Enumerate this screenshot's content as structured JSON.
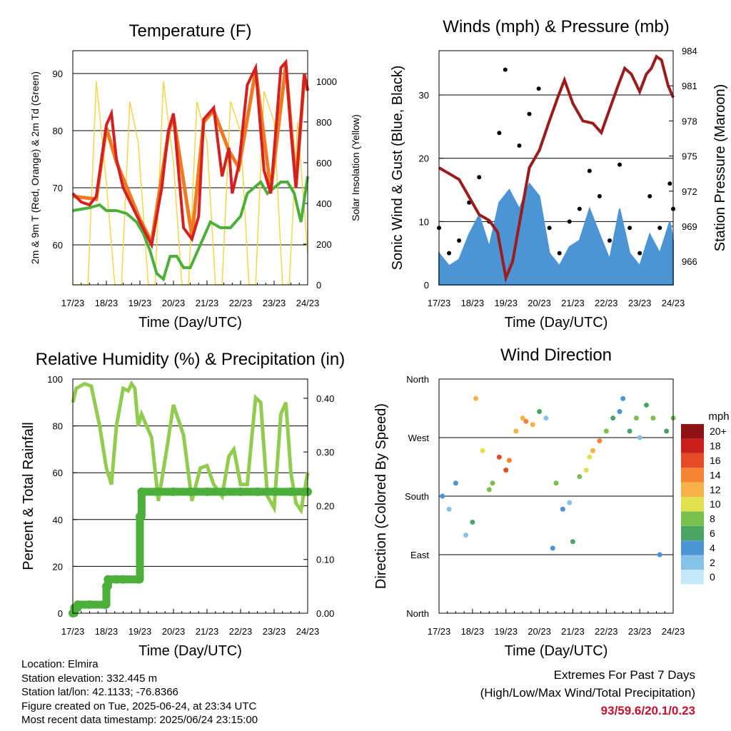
{
  "colors": {
    "temp_2m": "#d42020",
    "temp_9m": "#f07a20",
    "dewpoint": "#4caf3a",
    "solar": "#f5d64a",
    "wind": "#4d94d4",
    "gust": "#000000",
    "pressure": "#9b1c1c",
    "rh": "#92cc4f",
    "precip": "#4caf3a",
    "extremes": "#c8102e"
  },
  "time_ticks": [
    "17/23",
    "18/23",
    "19/23",
    "20/23",
    "21/23",
    "22/23",
    "23/23",
    "24/23"
  ],
  "panels": {
    "temperature": {
      "title": "Temperature (F)",
      "xlabel": "Time (Day/UTC)",
      "ylabel_left": "2m & 9m T (Red, Orange) & 2m Td (Green)",
      "ylabel_right": "Solar Insolation (Yellow)",
      "yticks_left": [
        "60",
        "70",
        "80",
        "90"
      ],
      "yticks_right": [
        "0",
        "200",
        "400",
        "600",
        "800",
        "1000"
      ]
    },
    "winds": {
      "title": "Winds (mph) & Pressure (mb)",
      "xlabel": "Time (Day/UTC)",
      "ylabel_left": "Sonic Wind & Gust (Blue, Black)",
      "ylabel_right": "Station Pressure (Maroon)",
      "yticks_left": [
        "0",
        "10",
        "20",
        "30"
      ],
      "yticks_right": [
        "966",
        "969",
        "972",
        "975",
        "978",
        "981",
        "984"
      ]
    },
    "humidity": {
      "title": "Relative Humidity (%) & Precipitation (in)",
      "xlabel": "Time (Day/UTC)",
      "ylabel_left": "Percent & Total Rainfall",
      "yticks_left": [
        "0",
        "20",
        "40",
        "60",
        "80",
        "100"
      ],
      "yticks_right": [
        "0.00",
        "0.10",
        "0.20",
        "0.30",
        "0.40"
      ]
    },
    "direction": {
      "title": "Wind Direction",
      "xlabel": "Time (Day/UTC)",
      "ylabel_left": "Direction (Colored By Speed)",
      "yticks_left": [
        "North",
        "East",
        "South",
        "West",
        "North"
      ],
      "colorbar_title": "mph",
      "colorbar_labels": [
        "0",
        "2",
        "4",
        "6",
        "8",
        "10",
        "12",
        "14",
        "16",
        "18",
        "20+"
      ],
      "colorbar_colors": [
        "#c6e9f7",
        "#86c2e8",
        "#4d94d4",
        "#4ca464",
        "#7bc04f",
        "#e1e04f",
        "#f7b149",
        "#f58535",
        "#e54a26",
        "#c81e1e",
        "#8e1114"
      ]
    }
  },
  "info": {
    "location": "Location: Elmira",
    "elevation": "Station elevation: 332.445 m",
    "latlon": "Station lat/lon: 42.1133; -76.8366",
    "created": "Figure created on Tue, 2025-06-24, at 23:34 UTC",
    "latest": "Most recent data timestamp: 2025/06/24 23:15:00"
  },
  "extremes": {
    "heading": "Extremes For Past 7 Days",
    "subheading": "(High/Low/Max Wind/Total Precipitation)",
    "values": "93/59.6/20.1/0.23"
  },
  "chart_data": [
    {
      "type": "line",
      "title": "Temperature (F)",
      "x_unit": "days since 17/23 UTC",
      "x_range": [
        0,
        7
      ],
      "ylim": [
        53,
        94
      ],
      "ylim_right": [
        0,
        1150
      ],
      "series": [
        {
          "name": "2m T",
          "axis": "left",
          "x": [
            0,
            0.25,
            0.5,
            0.7,
            1.0,
            1.15,
            1.3,
            1.5,
            1.75,
            2.0,
            2.35,
            2.65,
            2.85,
            3.0,
            3.15,
            3.3,
            3.55,
            3.75,
            3.9,
            4.2,
            4.45,
            4.65,
            4.75,
            4.95,
            5.2,
            5.45,
            5.6,
            5.7,
            5.9,
            6.2,
            6.35,
            6.5,
            6.65,
            6.9,
            7.0
          ],
          "values": [
            69,
            67.5,
            67,
            68.5,
            81,
            83,
            75,
            70,
            67,
            64,
            60,
            70,
            80,
            83,
            73,
            63,
            61,
            65,
            82,
            84,
            72,
            77,
            69,
            74,
            88,
            91,
            80,
            73,
            69,
            91,
            92,
            80,
            70,
            90,
            87
          ]
        },
        {
          "name": "9m T",
          "axis": "left",
          "x": [
            0,
            0.7,
            1.0,
            1.3,
            2.0,
            2.35,
            2.85,
            3.0,
            3.55,
            3.9,
            4.2,
            4.65,
            4.95,
            5.45,
            5.9,
            6.35,
            6.65,
            6.9,
            7.0
          ],
          "values": [
            68.5,
            68,
            80.5,
            74.5,
            64.5,
            60.5,
            79.5,
            82.5,
            61.5,
            81.5,
            83.5,
            76.5,
            73.5,
            90.5,
            69.5,
            91.5,
            70.5,
            89.5,
            87
          ]
        },
        {
          "name": "2m Td",
          "axis": "left",
          "x": [
            0,
            0.5,
            0.8,
            1.0,
            1.3,
            1.6,
            1.9,
            2.1,
            2.3,
            2.5,
            2.7,
            2.9,
            3.1,
            3.3,
            3.5,
            3.8,
            4.1,
            4.4,
            4.7,
            5.0,
            5.2,
            5.4,
            5.6,
            5.8,
            6.0,
            6.2,
            6.4,
            6.6,
            6.8,
            7.0
          ],
          "values": [
            66,
            66.5,
            67,
            66,
            66,
            65.5,
            64,
            62,
            59,
            55,
            54,
            58,
            58,
            56,
            56,
            60,
            64,
            63,
            63,
            65,
            69,
            70,
            71,
            69,
            70,
            71,
            71,
            69,
            64,
            72
          ]
        },
        {
          "name": "Solar Insolation",
          "axis": "right",
          "x": [
            0,
            0.45,
            0.7,
            1.0,
            1.25,
            1.45,
            1.7,
            1.95,
            2.25,
            2.45,
            2.7,
            3.0,
            3.25,
            3.45,
            3.7,
            4.0,
            4.25,
            4.45,
            4.7,
            5.0,
            5.25,
            5.45,
            5.7,
            6.0,
            6.25,
            6.45,
            6.7,
            7.0
          ],
          "values": [
            0,
            0,
            1000,
            500,
            0,
            0,
            900,
            700,
            0,
            0,
            1000,
            600,
            0,
            0,
            900,
            700,
            0,
            0,
            900,
            750,
            0,
            0,
            950,
            800,
            0,
            0,
            800,
            150
          ]
        }
      ]
    },
    {
      "type": "line",
      "title": "Winds (mph) & Pressure (mb)",
      "x_unit": "days since 17/23 UTC",
      "x_range": [
        0,
        7
      ],
      "ylim": [
        0,
        37
      ],
      "ylim_right": [
        964,
        984
      ],
      "series": [
        {
          "name": "Sonic Wind",
          "axis": "left",
          "x": [
            0,
            0.3,
            0.6,
            0.9,
            1.2,
            1.5,
            1.8,
            2.1,
            2.4,
            2.7,
            3.0,
            3.3,
            3.6,
            3.9,
            4.2,
            4.5,
            4.8,
            5.1,
            5.4,
            5.7,
            6.0,
            6.3,
            6.6,
            6.9,
            7.0
          ],
          "values": [
            5,
            3,
            4,
            8,
            11,
            6,
            13,
            15,
            12,
            16,
            14,
            5,
            3,
            6,
            7,
            12,
            8,
            4,
            12,
            5,
            3,
            8,
            5,
            10,
            7
          ]
        },
        {
          "name": "Gust",
          "axis": "left",
          "x": [
            0,
            0.3,
            0.6,
            0.9,
            1.2,
            1.5,
            1.8,
            1.98,
            2.4,
            2.7,
            2.98,
            3.3,
            3.6,
            3.9,
            4.2,
            4.5,
            4.8,
            5.1,
            5.4,
            5.7,
            6.0,
            6.3,
            6.6,
            6.9,
            7.0
          ],
          "values": [
            9,
            5,
            7,
            13,
            17,
            10,
            24,
            34,
            22,
            27,
            31,
            9,
            5,
            10,
            12,
            18,
            14,
            7,
            19,
            9,
            5,
            14,
            9,
            16,
            12
          ]
        },
        {
          "name": "Station Pressure",
          "axis": "right",
          "x": [
            0,
            0.3,
            0.6,
            0.9,
            1.2,
            1.5,
            1.75,
            2.0,
            2.2,
            2.45,
            2.7,
            3.0,
            3.3,
            3.55,
            3.75,
            4.0,
            4.3,
            4.6,
            4.85,
            5.1,
            5.35,
            5.55,
            5.75,
            6.0,
            6.2,
            6.35,
            6.5,
            6.65,
            6.85,
            7.0
          ],
          "values": [
            974,
            973.5,
            973,
            971.5,
            970,
            969.5,
            968.5,
            964.6,
            966,
            970,
            974,
            975.5,
            978,
            980,
            981.5,
            979.5,
            978,
            977.8,
            977,
            979,
            981,
            982.5,
            982,
            980.5,
            982,
            982.5,
            983.5,
            983.2,
            981,
            980
          ]
        }
      ]
    },
    {
      "type": "line",
      "title": "Relative Humidity (%) & Precipitation (in)",
      "x_unit": "days since 17/23 UTC",
      "x_range": [
        0,
        7
      ],
      "ylim": [
        0,
        100
      ],
      "ylim_right": [
        0,
        0.4357
      ],
      "series": [
        {
          "name": "Relative Humidity",
          "axis": "left",
          "x": [
            0,
            0.1,
            0.35,
            0.55,
            0.8,
            1.0,
            1.15,
            1.3,
            1.5,
            1.65,
            1.75,
            1.85,
            1.95,
            2.05,
            2.2,
            2.35,
            2.55,
            2.8,
            3.0,
            3.3,
            3.55,
            3.8,
            4.0,
            4.2,
            4.45,
            4.65,
            4.8,
            5.0,
            5.2,
            5.45,
            5.6,
            5.8,
            6.0,
            6.2,
            6.35,
            6.5,
            6.65,
            6.8,
            7.0
          ],
          "values": [
            90,
            96,
            98,
            97,
            80,
            62,
            55,
            80,
            96,
            95,
            98,
            96,
            80,
            85,
            80,
            75,
            48,
            70,
            89,
            76,
            48,
            62,
            63,
            55,
            50,
            67,
            70,
            55,
            55,
            92,
            90,
            50,
            45,
            85,
            90,
            60,
            47,
            44,
            60
          ]
        },
        {
          "name": "Total Precipitation",
          "axis": "right",
          "x": [
            0,
            0.05,
            0.15,
            0.5,
            0.95,
            1.0,
            1.05,
            1.3,
            1.5,
            1.95,
            2.0,
            2.05,
            2.5,
            3.0,
            3.5,
            4.0,
            4.5,
            5.0,
            5.5,
            6.0,
            6.5,
            7.0
          ],
          "values": [
            0.0,
            0.01,
            0.016,
            0.016,
            0.016,
            0.05,
            0.063,
            0.063,
            0.063,
            0.063,
            0.18,
            0.226,
            0.226,
            0.226,
            0.226,
            0.226,
            0.226,
            0.226,
            0.226,
            0.226,
            0.226,
            0.226
          ]
        }
      ]
    },
    {
      "type": "scatter",
      "title": "Wind Direction",
      "x_unit": "days since 17/23 UTC",
      "x_range": [
        0,
        7
      ],
      "ylim": [
        0,
        360
      ],
      "y_unit": "degrees (North=0, East=90, South=180, West=270)",
      "color_by": "speed (mph)",
      "series": [
        {
          "name": "Wind Direction",
          "x": [
            0.1,
            0.3,
            0.5,
            0.8,
            1.0,
            1.1,
            1.3,
            1.5,
            1.6,
            1.8,
            2.0,
            2.1,
            2.3,
            2.5,
            2.6,
            2.8,
            3.0,
            3.2,
            3.4,
            3.5,
            3.7,
            3.9,
            4.0,
            4.2,
            4.4,
            4.5,
            4.6,
            4.8,
            5.0,
            5.2,
            5.4,
            5.5,
            5.7,
            5.9,
            6.0,
            6.2,
            6.4,
            6.6,
            6.8,
            7.0
          ],
          "values": [
            180,
            160,
            200,
            120,
            140,
            330,
            250,
            190,
            200,
            240,
            220,
            235,
            280,
            300,
            295,
            290,
            310,
            300,
            100,
            200,
            160,
            170,
            110,
            210,
            220,
            240,
            250,
            265,
            280,
            300,
            310,
            330,
            280,
            300,
            270,
            320,
            300,
            90,
            280,
            300
          ],
          "speeds": [
            3,
            2,
            4,
            1,
            6,
            11,
            9,
            7,
            8,
            15,
            15,
            14,
            12,
            12,
            13,
            11,
            5,
            2,
            3,
            8,
            4,
            2,
            5,
            7,
            9,
            10,
            12,
            14,
            8,
            5,
            4,
            3,
            6,
            8,
            2,
            5,
            7,
            3,
            6,
            8
          ]
        }
      ]
    }
  ]
}
